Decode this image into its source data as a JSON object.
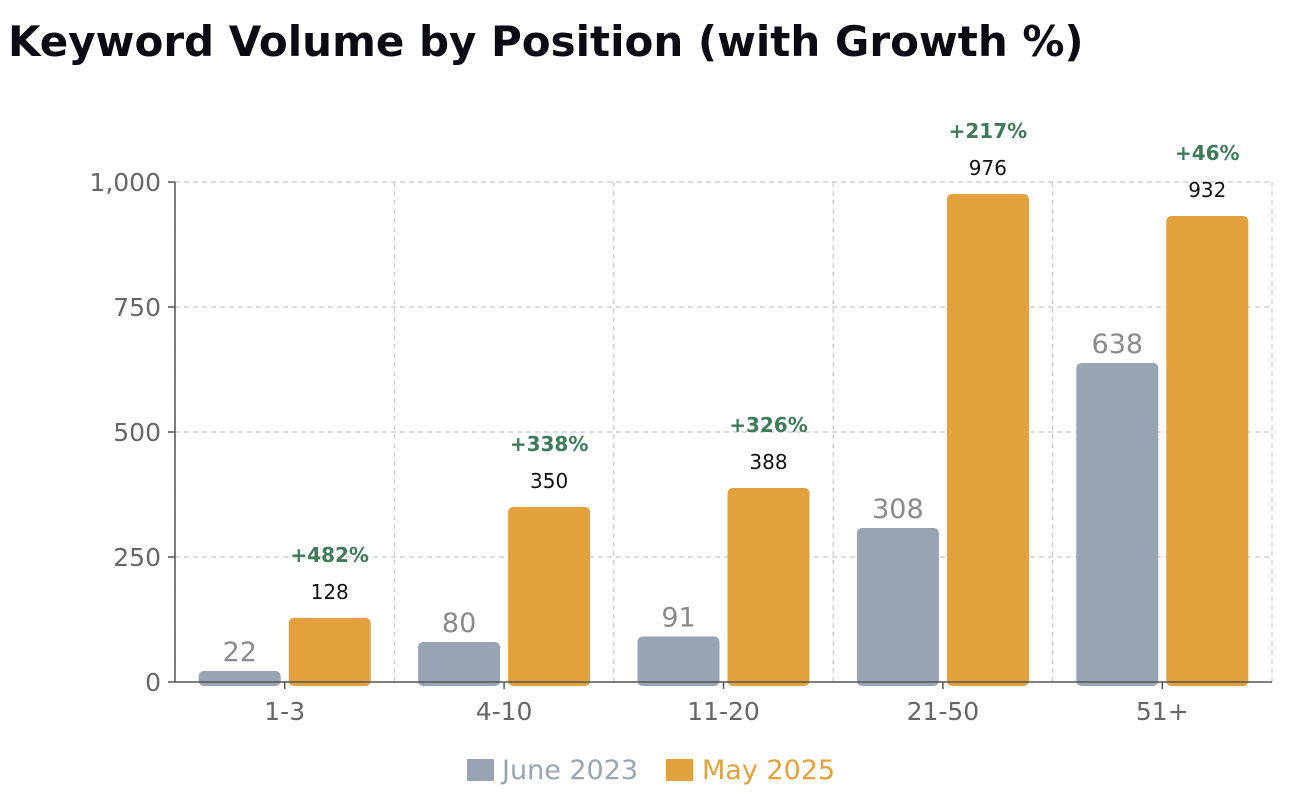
{
  "chart_data": {
    "type": "bar",
    "title": "Keyword Volume by Position (with Growth %)",
    "xlabel": "",
    "ylabel": "",
    "categories": [
      "1-3",
      "4-10",
      "11-20",
      "21-50",
      "51+"
    ],
    "series": [
      {
        "name": "June 2023",
        "values": [
          22,
          80,
          91,
          308,
          638
        ],
        "color": "#98a3b3"
      },
      {
        "name": "May 2025",
        "values": [
          128,
          350,
          388,
          976,
          932
        ],
        "color": "#e2a13c"
      }
    ],
    "growth_labels": [
      "+482%",
      "+338%",
      "+326%",
      "+217%",
      "+46%"
    ],
    "growth_color": "#3f7a5a",
    "ylim": [
      0,
      1000
    ],
    "yticks": [
      0,
      250,
      500,
      750,
      1000
    ],
    "ytick_labels": [
      "0",
      "250",
      "500",
      "750",
      "1,000"
    ],
    "grid": true,
    "legend": "bottom-center"
  }
}
